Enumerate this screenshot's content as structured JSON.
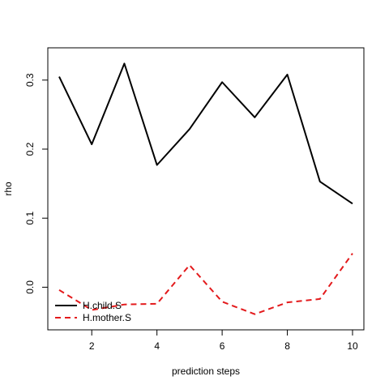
{
  "chart_data": {
    "type": "line",
    "title": "",
    "xlabel": "prediction steps",
    "ylabel": "rho",
    "x": [
      1,
      2,
      3,
      4,
      5,
      6,
      7,
      8,
      9,
      10
    ],
    "xlim": [
      1,
      10
    ],
    "ylim": [
      -0.05,
      0.335
    ],
    "xticks": [
      2,
      4,
      6,
      8,
      10
    ],
    "yticks": [
      0.0,
      0.1,
      0.2,
      0.3
    ],
    "xtick_labels": [
      "2",
      "4",
      "6",
      "8",
      "10"
    ],
    "ytick_labels": [
      "0.0",
      "0.1",
      "0.2",
      "0.3"
    ],
    "grid": false,
    "legend_position": "bottom-left",
    "series": [
      {
        "name": "H.child.S",
        "color": "#000000",
        "dash": "solid",
        "values": [
          0.305,
          0.207,
          0.324,
          0.177,
          0.229,
          0.297,
          0.246,
          0.308,
          0.153,
          0.121
        ]
      },
      {
        "name": "H.mother.S",
        "color": "#e31a1c",
        "dash": "dashed",
        "values": [
          -0.004,
          -0.033,
          -0.025,
          -0.024,
          0.032,
          -0.021,
          -0.039,
          -0.022,
          -0.017,
          0.049
        ]
      }
    ]
  }
}
